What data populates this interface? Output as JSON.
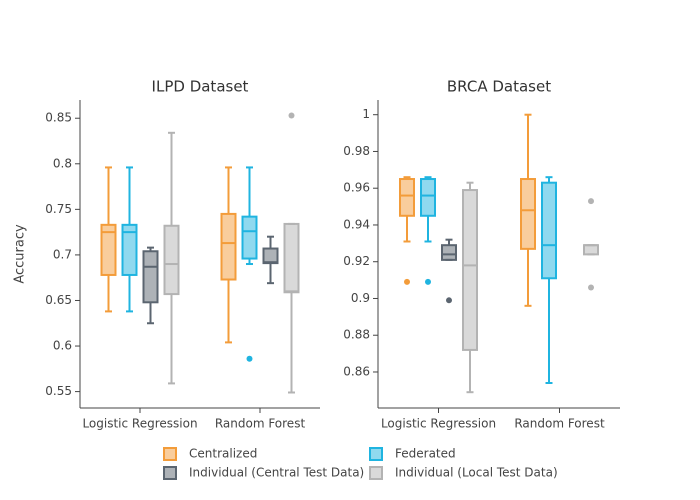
{
  "chart_data": [
    {
      "type": "box",
      "title": "ILPD Dataset",
      "y_label": "Accuracy",
      "categories": [
        "Logistic Regression",
        "Random Forest"
      ],
      "ylim": [
        0.532,
        0.87
      ],
      "yticks": [
        0.55,
        0.6,
        0.65,
        0.7,
        0.75,
        0.8,
        0.85
      ],
      "series": [
        {
          "name": "Centralized",
          "color": "#f39c3a",
          "values": [
            {
              "min": 0.638,
              "q1": 0.678,
              "median": 0.725,
              "q3": 0.733,
              "max": 0.796,
              "outliers": []
            },
            {
              "min": 0.604,
              "q1": 0.673,
              "median": 0.713,
              "q3": 0.745,
              "max": 0.796,
              "outliers": []
            }
          ]
        },
        {
          "name": "Federated",
          "color": "#1fb4e0",
          "values": [
            {
              "min": 0.638,
              "q1": 0.678,
              "median": 0.725,
              "q3": 0.733,
              "max": 0.796,
              "outliers": []
            },
            {
              "min": 0.69,
              "q1": 0.696,
              "median": 0.726,
              "q3": 0.742,
              "max": 0.796,
              "outliers": [
                0.586
              ]
            }
          ]
        },
        {
          "name": "Individual (Central Test Data)",
          "color": "#5b6570",
          "values": [
            {
              "min": 0.625,
              "q1": 0.648,
              "median": 0.687,
              "q3": 0.704,
              "max": 0.708,
              "outliers": []
            },
            {
              "min": 0.669,
              "q1": 0.691,
              "median": 0.692,
              "q3": 0.707,
              "max": 0.72,
              "outliers": []
            }
          ]
        },
        {
          "name": "Individual (Local Test Data)",
          "color": "#b3b3b3",
          "values": [
            {
              "min": 0.559,
              "q1": 0.657,
              "median": 0.69,
              "q3": 0.732,
              "max": 0.834,
              "outliers": []
            },
            {
              "min": 0.549,
              "q1": 0.659,
              "median": 0.66,
              "q3": 0.734,
              "max": 0.734,
              "outliers": [
                0.853
              ]
            }
          ]
        }
      ]
    },
    {
      "type": "box",
      "title": "BRCA Dataset",
      "categories": [
        "Logistic Regression",
        "Random Forest"
      ],
      "ylim": [
        0.8404,
        1.008
      ],
      "yticks": [
        0.86,
        0.88,
        0.9,
        0.92,
        0.94,
        0.96,
        0.98,
        1
      ],
      "series": [
        {
          "color": "#f39c3a",
          "values": [
            {
              "min": 0.931,
              "q1": 0.945,
              "median": 0.956,
              "q3": 0.965,
              "max": 0.966,
              "outliers": [
                0.909
              ]
            },
            {
              "min": 0.896,
              "q1": 0.927,
              "median": 0.948,
              "q3": 0.965,
              "max": 1.0,
              "outliers": []
            }
          ]
        },
        {
          "color": "#1fb4e0",
          "values": [
            {
              "min": 0.931,
              "q1": 0.945,
              "median": 0.956,
              "q3": 0.965,
              "max": 0.966,
              "outliers": [
                0.909
              ]
            },
            {
              "min": 0.854,
              "q1": 0.911,
              "median": 0.929,
              "q3": 0.963,
              "max": 0.966,
              "outliers": []
            }
          ]
        },
        {
          "color": "#5b6570",
          "values": [
            {
              "min": 0.921,
              "q1": 0.921,
              "median": 0.924,
              "q3": 0.929,
              "max": 0.932,
              "outliers": [
                0.899
              ]
            },
            null
          ]
        },
        {
          "color": "#b3b3b3",
          "values": [
            {
              "min": 0.849,
              "q1": 0.872,
              "median": 0.918,
              "q3": 0.959,
              "max": 0.963,
              "outliers": []
            },
            {
              "min": 0.924,
              "q1": 0.924,
              "median": 0.929,
              "q3": 0.929,
              "max": 0.929,
              "outliers": [
                0.953,
                0.906
              ]
            }
          ]
        }
      ]
    }
  ]
}
